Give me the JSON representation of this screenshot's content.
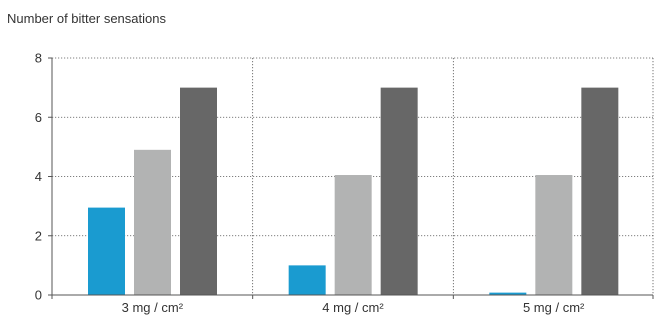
{
  "chart_data": {
    "type": "bar",
    "ylabel": "Number of bitter sensations",
    "ylim": [
      0,
      8
    ],
    "yticks": [
      "0",
      "2",
      "4",
      "6",
      "8"
    ],
    "ytick_values": [
      0,
      2,
      4,
      6,
      8
    ],
    "categories": [
      "3 mg / cm²",
      "4 mg / cm²",
      "5 mg / cm²"
    ],
    "series": [
      {
        "values": [
          2.95,
          1.0,
          0.08
        ],
        "color": "#1a9bd0"
      },
      {
        "values": [
          4.9,
          4.05,
          4.05
        ],
        "color": "#b2b3b3"
      },
      {
        "values": [
          7.0,
          7.0,
          7.0
        ],
        "color": "#676767"
      }
    ],
    "grid": true,
    "legend": "none",
    "colors": {
      "axis": "#555555",
      "grid": "#555555",
      "text": "#333333"
    }
  }
}
